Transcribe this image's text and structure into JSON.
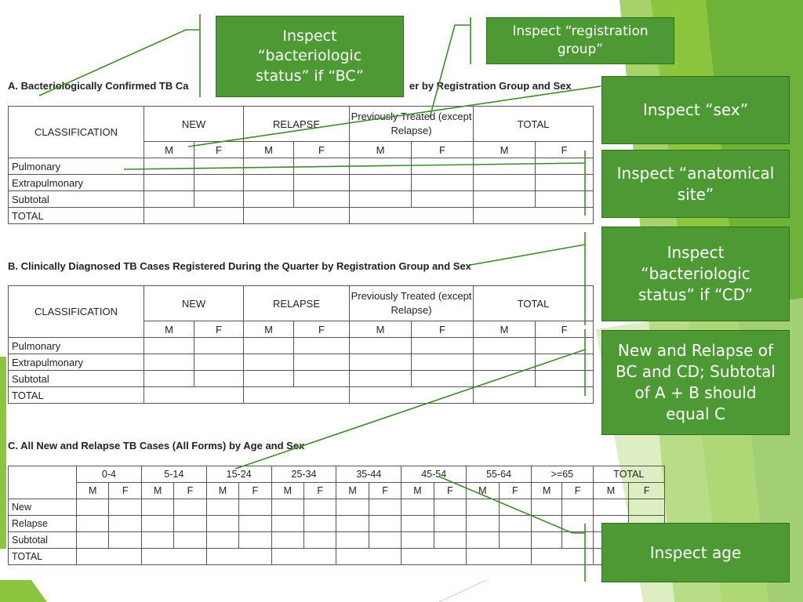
{
  "colors": {
    "callout_fill": "#4d9a34",
    "callout_border": "#2f6f1f",
    "line": "#3e8a2a",
    "deco_green": "#8cc63f"
  },
  "section_a": {
    "title": "A. Bacteriologically Confirmed TB Ca",
    "title_tail": "er by Registration Group and Sex",
    "classification": "CLASSIFICATION",
    "groups": [
      "NEW",
      "RELAPSE",
      "Previously Treated (except Relapse)",
      "TOTAL"
    ],
    "sex": [
      "M",
      "F",
      "M",
      "F",
      "M",
      "F",
      "M",
      "F"
    ],
    "rows": [
      "Pulmonary",
      "Extrapulmonary",
      "Subtotal",
      "TOTAL"
    ]
  },
  "section_b": {
    "title": "B. Clinically Diagnosed TB Cases Registered During the Quarter by Registration Group and Sex",
    "classification": "CLASSIFICATION",
    "groups": [
      "NEW",
      "RELAPSE",
      "Previously Treated (except Relapse)",
      "TOTAL"
    ],
    "sex": [
      "M",
      "F",
      "M",
      "F",
      "M",
      "F",
      "M",
      "F"
    ],
    "rows": [
      "Pulmonary",
      "Extrapulmonary",
      "Subtotal",
      "TOTAL"
    ]
  },
  "section_c": {
    "title": "C. All New and Relapse TB Cases (All Forms) by Age and Sex",
    "age_groups": [
      "0-4",
      "5-14",
      "15-24",
      "25-34",
      "35-44",
      "45-54",
      "55-64",
      ">=65",
      "TOTAL"
    ],
    "sex": [
      "M",
      "F",
      "M",
      "F",
      "M",
      "F",
      "M",
      "F",
      "M",
      "F",
      "M",
      "F",
      "M",
      "F",
      "M",
      "F",
      "M",
      "F"
    ],
    "rows": [
      "New",
      "Relapse",
      "Subtotal",
      "TOTAL"
    ]
  },
  "callouts": {
    "bc_status": "Inspect “bacteriologic status” if “BC”",
    "registration_group": "Inspect “registration group”",
    "sex": "Inspect “sex”",
    "anatomical_site": "Inspect “anatomical site”",
    "cd_status": "Inspect “bacteriologic status” if “CD”",
    "new_relapse": "New and Relapse of BC and CD; Subtotal of A + B should equal C",
    "age": "Inspect age"
  }
}
